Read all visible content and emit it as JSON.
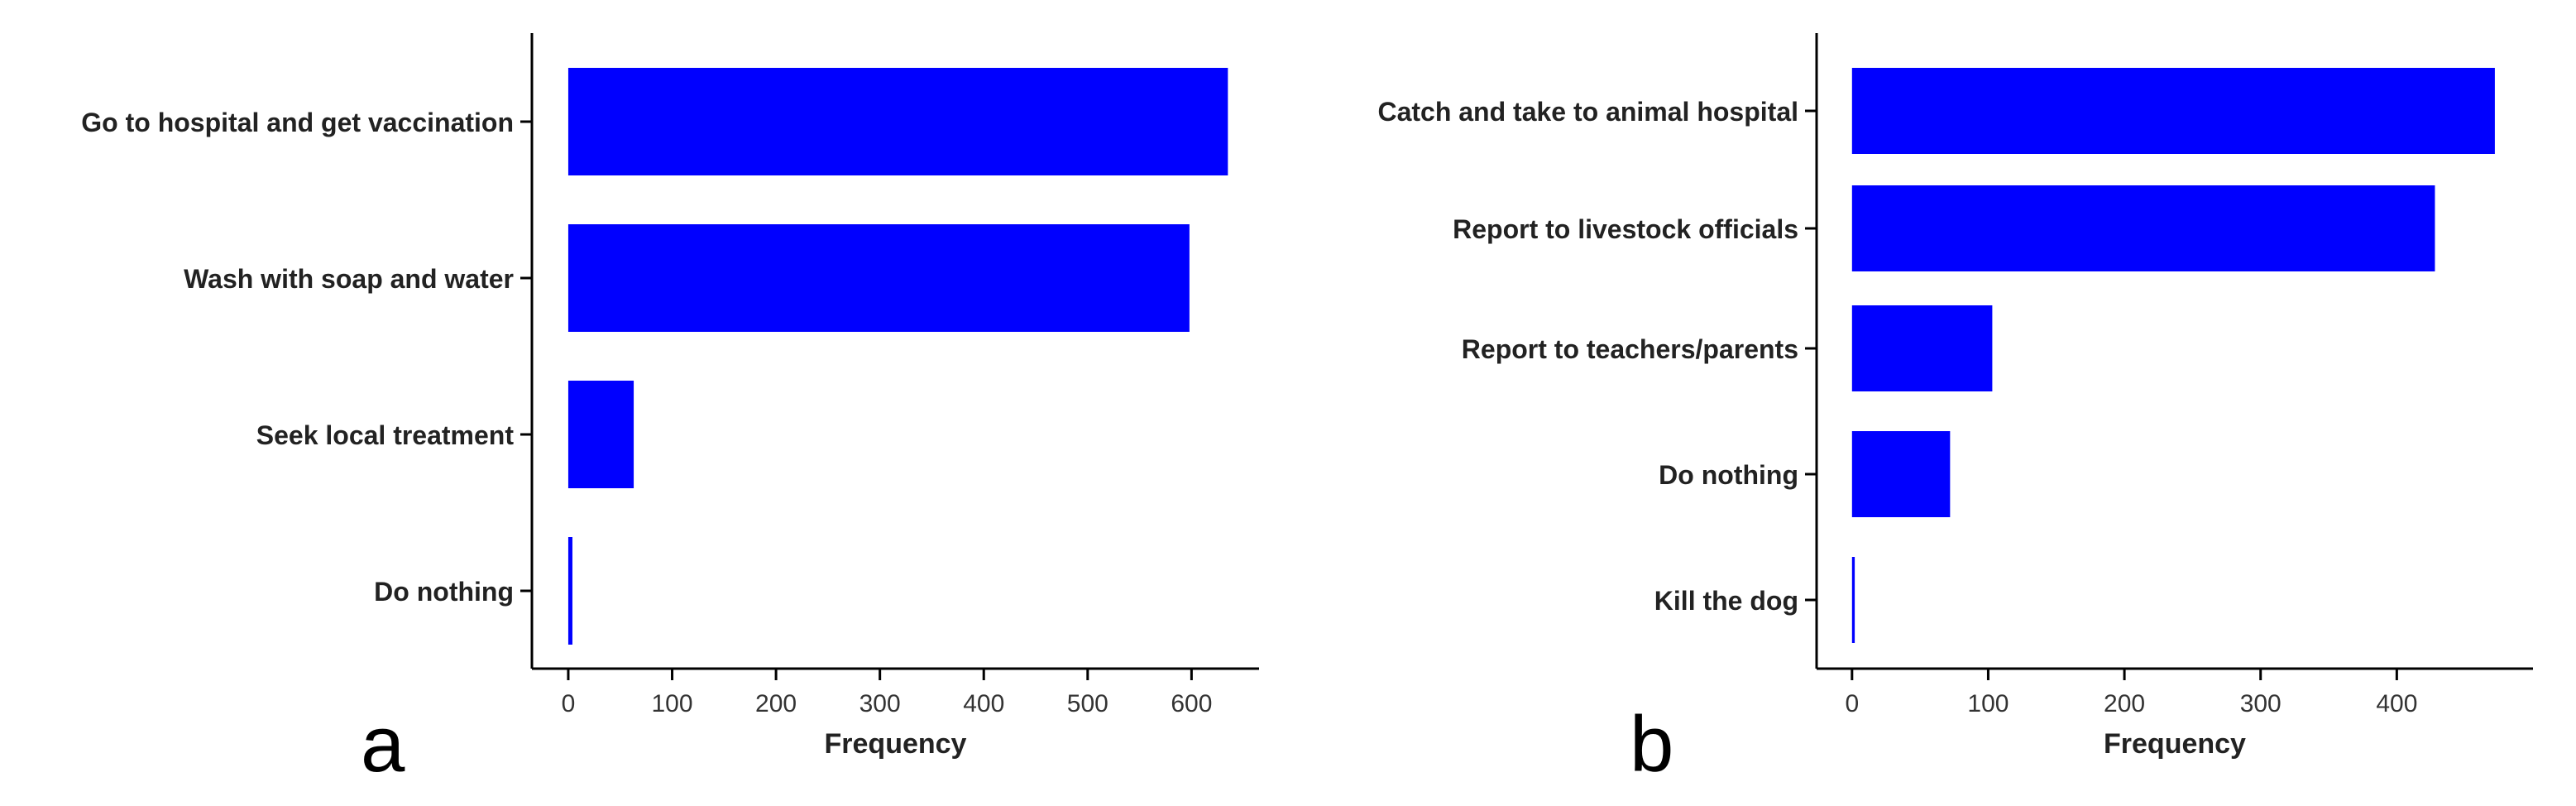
{
  "chart_data": [
    {
      "panel": "a",
      "type": "bar",
      "orientation": "horizontal",
      "categories": [
        "Go to hospital and get vaccination",
        "Wash with soap and water",
        "Seek local treatment",
        "Do nothing"
      ],
      "values": [
        635,
        598,
        63,
        4
      ],
      "xlabel": "Frequency",
      "ylabel": "",
      "xlim": [
        -35,
        665
      ],
      "xticks": [
        0,
        100,
        200,
        300,
        400,
        500,
        600
      ],
      "grid": false,
      "bar_color": "#0000ff"
    },
    {
      "panel": "b",
      "type": "bar",
      "orientation": "horizontal",
      "categories": [
        "Catch and take to animal hospital",
        "Report to livestock officials",
        "Report to teachers/parents",
        "Do nothing",
        "Kill the dog"
      ],
      "values": [
        472,
        428,
        103,
        72,
        2
      ],
      "xlabel": "Frequency",
      "ylabel": "",
      "xlim": [
        -26,
        500
      ],
      "xticks": [
        0,
        100,
        200,
        300,
        400
      ],
      "grid": false,
      "bar_color": "#0000ff"
    }
  ]
}
